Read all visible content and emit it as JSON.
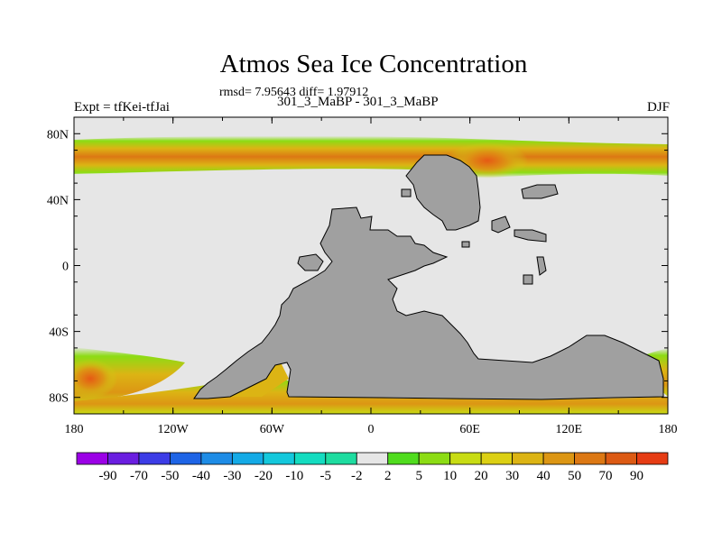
{
  "title": "Atmos Sea Ice Concentration",
  "stats": "rmsd= 7.95643 diff= 1.97912",
  "experiment_label": "Expt = tfKei-tfJai",
  "comparison_label": "301_3_MaBP - 301_3_MaBP",
  "season_label": "DJF",
  "map": {
    "lat_ticks": [
      {
        "lat": 80,
        "label": "80N"
      },
      {
        "lat": 40,
        "label": "40N"
      },
      {
        "lat": 0,
        "label": "0"
      },
      {
        "lat": -40,
        "label": "40S"
      },
      {
        "lat": -80,
        "label": "80S"
      }
    ],
    "lon_ticks": [
      {
        "lon": -180,
        "label": "180"
      },
      {
        "lon": -120,
        "label": "120W"
      },
      {
        "lon": -60,
        "label": "60W"
      },
      {
        "lon": 0,
        "label": "0"
      },
      {
        "lon": 60,
        "label": "60E"
      },
      {
        "lon": 120,
        "label": "120E"
      },
      {
        "lon": 180,
        "label": "180"
      }
    ],
    "lat_range": [
      -90,
      90
    ],
    "lon_range": [
      -180,
      180
    ],
    "ocean_color": "#e6e6e6",
    "land_color": "#a0a0a0"
  },
  "colorbar": {
    "labels": [
      "-90",
      "-70",
      "-50",
      "-40",
      "-30",
      "-20",
      "-10",
      "-5",
      "-2",
      "2",
      "5",
      "10",
      "20",
      "30",
      "40",
      "50",
      "70",
      "90"
    ],
    "colors": [
      "#9b00e6",
      "#6a1ee0",
      "#3c3ce6",
      "#1e64e6",
      "#1e8ce6",
      "#14aae6",
      "#14c8dc",
      "#14dcc0",
      "#1edca0",
      "#e6e6e6",
      "#50dc1e",
      "#8cdc14",
      "#c8dc14",
      "#dcd014",
      "#dcb414",
      "#dc9614",
      "#dc7814",
      "#dc5a14",
      "#e63c14"
    ]
  }
}
